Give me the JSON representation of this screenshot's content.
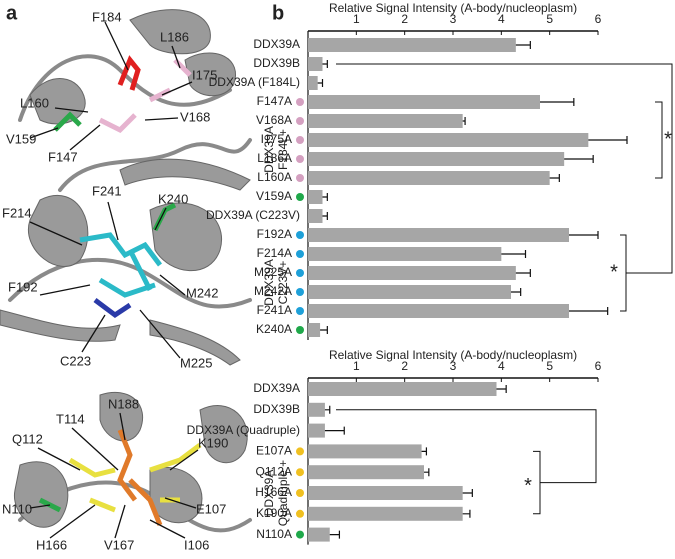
{
  "panel_a": {
    "label": "a",
    "structure_1": {
      "residues": [
        "F184",
        "L186",
        "L160",
        "I175",
        "V168",
        "V159",
        "F147"
      ]
    },
    "structure_2": {
      "residues": [
        "F241",
        "K240",
        "F214",
        "F192",
        "M242",
        "C223",
        "M225"
      ]
    },
    "structure_3": {
      "residues": [
        "N188",
        "T114",
        "Q112",
        "K190",
        "E107",
        "N110",
        "H166",
        "V167",
        "I106"
      ]
    }
  },
  "panel_b": {
    "label": "b"
  },
  "chart_data": [
    {
      "type": "bar",
      "orientation": "horizontal",
      "title": "Relative Signal Intensity (A-body/nucleoplasm)",
      "categories": [
        "DDX39A",
        "DDX39B",
        "DDX39A (F184L)",
        "F147A",
        "V168A",
        "I175A",
        "L186A",
        "L160A",
        "V159A",
        "DDX39A (C223V)",
        "F192A",
        "F214A",
        "M225A",
        "M242A",
        "F241A",
        "K240A"
      ],
      "values": [
        4.3,
        0.3,
        0.2,
        4.8,
        3.2,
        5.8,
        5.3,
        5.0,
        0.3,
        0.3,
        5.4,
        4.0,
        4.3,
        4.2,
        5.4,
        0.25
      ],
      "errors": [
        0.3,
        0.1,
        0.1,
        0.7,
        0.05,
        0.8,
        0.6,
        0.2,
        0.1,
        0.1,
        0.6,
        0.5,
        0.3,
        0.2,
        0.8,
        0.15
      ],
      "marker_colors": [
        null,
        null,
        null,
        "#d4a0c0",
        "#d4a0c0",
        "#d4a0c0",
        "#d4a0c0",
        "#d4a0c0",
        "#1fa84a",
        null,
        "#1ea0d8",
        "#1ea0d8",
        "#1ea0d8",
        "#1ea0d8",
        "#1ea0d8",
        "#1fa84a"
      ],
      "groups": [
        [
          "DDX39A",
          "F184L+"
        ],
        [
          "DDX39A",
          "C223V+"
        ]
      ],
      "significance": [
        "*",
        "*"
      ],
      "color": "#a6a6a6",
      "xlim": [
        0,
        6
      ],
      "xticks": [
        1,
        2,
        3,
        4,
        5,
        6
      ]
    },
    {
      "type": "bar",
      "orientation": "horizontal",
      "title": "Relative Signal Intensity (A-body/nucleoplasm)",
      "categories": [
        "DDX39A",
        "DDX39B",
        "DDX39A (Quadruple)",
        "E107A",
        "Q112A",
        "H166A",
        "K190A",
        "N110A"
      ],
      "values": [
        3.9,
        0.35,
        0.35,
        2.35,
        2.4,
        3.2,
        3.2,
        0.45
      ],
      "errors": [
        0.2,
        0.1,
        0.4,
        0.1,
        0.1,
        0.2,
        0.15,
        0.2
      ],
      "marker_colors": [
        null,
        null,
        null,
        "#f0c020",
        "#f0c020",
        "#f0c020",
        "#f0c020",
        "#1fa84a"
      ],
      "groups": [
        [
          "DDX39A",
          "Quadruple +"
        ]
      ],
      "significance": [
        "*"
      ],
      "color": "#a6a6a6",
      "xlim": [
        0,
        6
      ],
      "xticks": [
        1,
        2,
        3,
        4,
        5,
        6
      ]
    }
  ]
}
